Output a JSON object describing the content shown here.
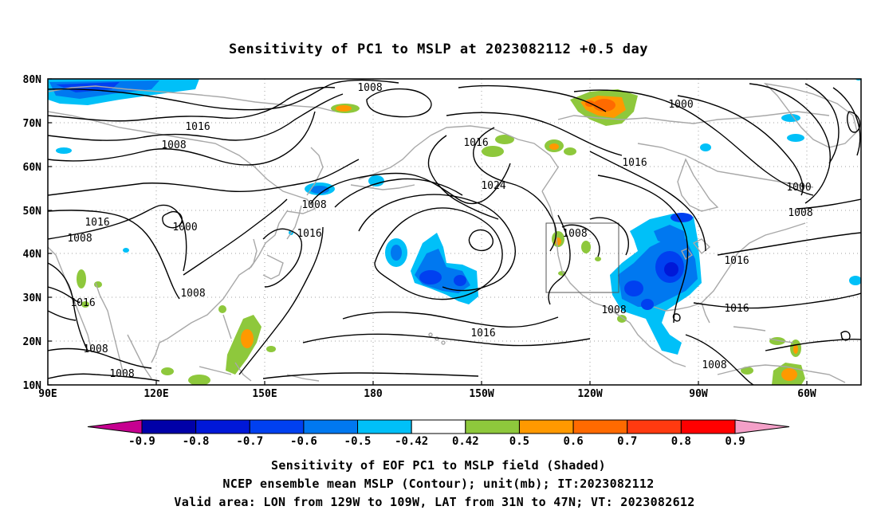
{
  "title": "Sensitivity of PC1 to MSLP at 2023082112 +0.5 day",
  "map": {
    "lon_labels": [
      "90E",
      "120E",
      "150E",
      "180",
      "150W",
      "120W",
      "90W",
      "60W"
    ],
    "lat_labels": [
      "80N",
      "70N",
      "60N",
      "50N",
      "40N",
      "30N",
      "20N",
      "10N"
    ],
    "contour_labels": [
      {
        "text": "1008"
      },
      {
        "text": "1016"
      },
      {
        "text": "1008"
      },
      {
        "text": "1016"
      },
      {
        "text": "1008"
      },
      {
        "text": "1000"
      },
      {
        "text": "1016"
      },
      {
        "text": "1008"
      },
      {
        "text": "1016"
      },
      {
        "text": "1008"
      },
      {
        "text": "1008"
      },
      {
        "text": "1016"
      },
      {
        "text": "1024"
      },
      {
        "text": "1016"
      },
      {
        "text": "1008"
      },
      {
        "text": "1000"
      },
      {
        "text": "1016"
      },
      {
        "text": "1000"
      },
      {
        "text": "1008"
      },
      {
        "text": "1016"
      },
      {
        "text": "1008"
      },
      {
        "text": "1016"
      },
      {
        "text": "1008"
      }
    ],
    "valid_box": {
      "lon_w": 129,
      "lon_e": 109,
      "lat_s": 31,
      "lat_n": 47
    }
  },
  "colorbar": {
    "labels": [
      "-0.9",
      "-0.8",
      "-0.7",
      "-0.6",
      "-0.5",
      "-0.42",
      "0.42",
      "0.5",
      "0.6",
      "0.7",
      "0.8",
      "0.9"
    ],
    "colors": [
      "#c60090",
      "#0000a8",
      "#0018d8",
      "#0040f0",
      "#0078f0",
      "#00c0f8",
      "#ffffff",
      "#8ec83c",
      "#ff9900",
      "#ff6a00",
      "#ff3a10",
      "#ff0000",
      "#f4a0c8"
    ]
  },
  "caption": {
    "line1": "Sensitivity of EOF PC1 to MSLP field (Shaded)",
    "line2": "NCEP ensemble mean MSLP (Contour); unit(mb); IT:2023082112",
    "line3": "Valid area: LON from 129W to 109W, LAT from 31N to 47N; VT: 2023082612"
  }
}
